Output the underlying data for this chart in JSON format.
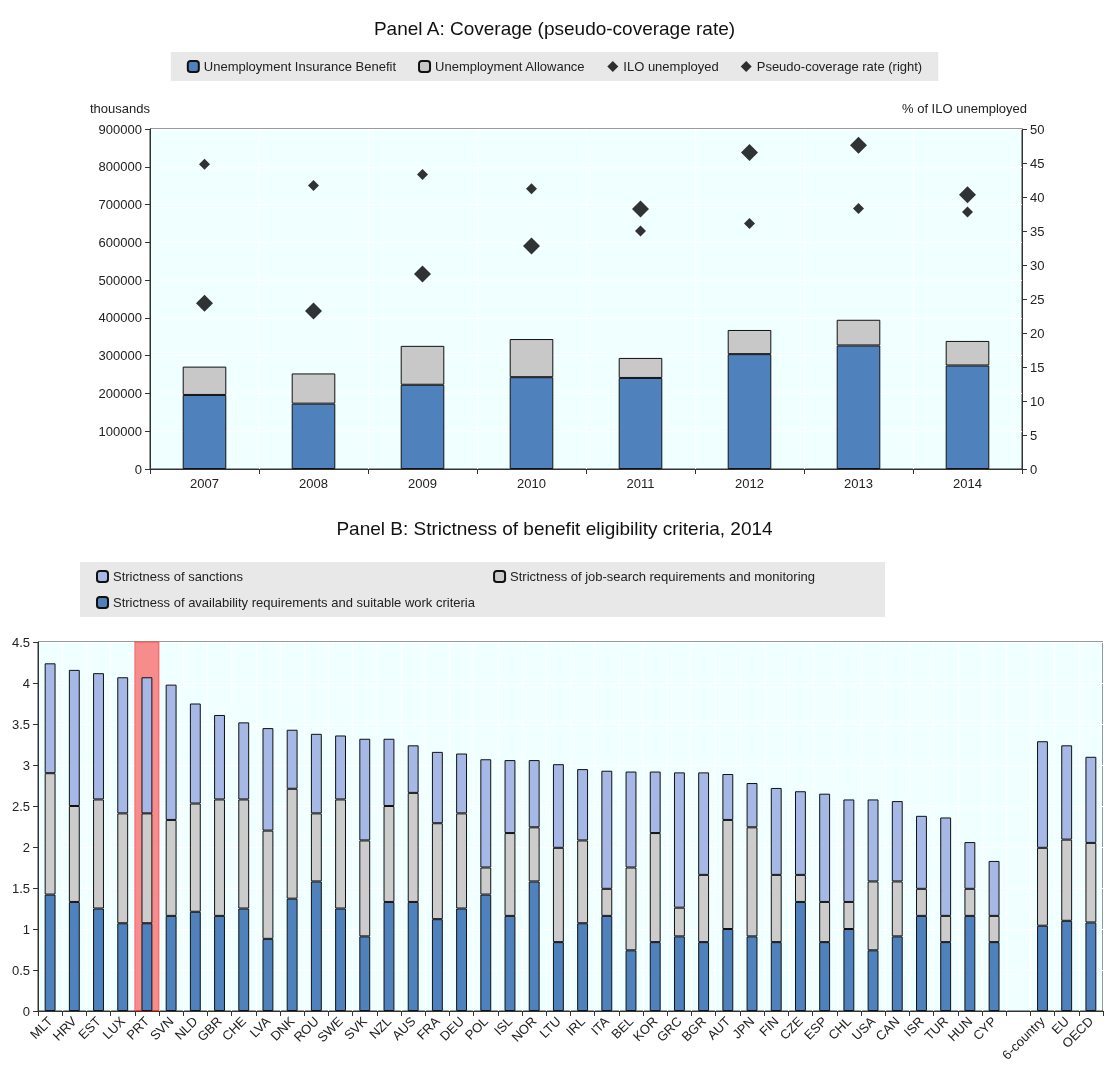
{
  "chart_data": [
    {
      "type": "bar",
      "title": "Panel A: Coverage (pseudo-coverage rate)",
      "categories": [
        "2007",
        "2008",
        "2009",
        "2010",
        "2011",
        "2012",
        "2013",
        "2014"
      ],
      "stacked": true,
      "ylabel": "thousands",
      "y2label": "% of ILO unemployed",
      "ylim": [
        0,
        900000
      ],
      "yticks": [
        0,
        100000,
        200000,
        300000,
        400000,
        500000,
        600000,
        700000,
        800000,
        900000
      ],
      "y2lim": [
        0,
        50
      ],
      "y2ticks": [
        0,
        5,
        10,
        15,
        20,
        25,
        30,
        35,
        40,
        45,
        50
      ],
      "legend": "top",
      "grid": true,
      "marker": "diamond",
      "series": [
        {
          "name": "Unemployment Insurance Benefit",
          "color": "#4f81bd",
          "values": [
            196000,
            173000,
            223000,
            243000,
            241000,
            304000,
            327000,
            274000
          ]
        },
        {
          "name": "Unemployment Allowance",
          "color": "#c8c8c8",
          "values": [
            75000,
            80000,
            103000,
            101000,
            53000,
            64000,
            68000,
            65000
          ]
        },
        {
          "name": "ILO unemployed",
          "type": "scatter",
          "color": "#000000",
          "values": [
            439000,
            418000,
            516000,
            590000,
            688000,
            838000,
            857000,
            726000
          ]
        },
        {
          "name": "Pseudo-coverage rate (right)",
          "type": "scatter",
          "axis": "y2",
          "color": "#000000",
          "values": [
            44.8,
            41.7,
            43.3,
            41.2,
            35.0,
            36.1,
            38.3,
            37.8
          ]
        }
      ]
    },
    {
      "type": "bar",
      "title": "Panel B: Strictness of benefit eligibility criteria, 2014",
      "categories": [
        "MLT",
        "HRV",
        "EST",
        "LUX",
        "PRT",
        "SVN",
        "NLD",
        "GBR",
        "CHE",
        "LVA",
        "DNK",
        "ROU",
        "SWE",
        "SVK",
        "NZL",
        "AUS",
        "FRA",
        "DEU",
        "POL",
        "ISL",
        "NOR",
        "LTU",
        "IRL",
        "ITA",
        "BEL",
        "KOR",
        "GRC",
        "BGR",
        "AUT",
        "JPN",
        "FIN",
        "CZE",
        "ESP",
        "CHL",
        "USA",
        "CAN",
        "ISR",
        "TUR",
        "HUN",
        "CYP",
        null,
        "6-country",
        "EU",
        "OECD"
      ],
      "stacked": true,
      "ylim": [
        0,
        4.5
      ],
      "yticks": [
        0,
        0.5,
        1,
        1.5,
        2,
        2.5,
        3,
        3.5,
        4,
        4.5
      ],
      "legend": "top",
      "grid": true,
      "bands": [
        {
          "axis": "x",
          "from": "PRT",
          "to": "PRT",
          "color": "#ff0000"
        }
      ],
      "series": [
        {
          "name": "Strictness of availability requirements and suitable work criteria",
          "color": "#4f81bd",
          "values": [
            1.42,
            1.33,
            1.25,
            1.07,
            1.07,
            1.16,
            1.21,
            1.16,
            1.25,
            0.88,
            1.37,
            1.58,
            1.25,
            0.91,
            1.33,
            1.33,
            1.12,
            1.25,
            1.42,
            1.16,
            1.58,
            0.84,
            1.07,
            1.16,
            0.74,
            0.84,
            0.91,
            0.84,
            1.0,
            0.91,
            0.84,
            1.33,
            0.84,
            1.0,
            0.74,
            0.91,
            1.16,
            0.84,
            1.16,
            0.84,
            null,
            1.04,
            1.1,
            1.08
          ]
        },
        {
          "name": "Strictness of job-search requirements and monitoring",
          "color": "#cccccc",
          "values": [
            1.48,
            1.17,
            1.33,
            1.34,
            1.34,
            1.17,
            1.32,
            1.42,
            1.33,
            1.32,
            1.34,
            0.83,
            1.33,
            1.17,
            1.17,
            1.33,
            1.17,
            1.16,
            0.33,
            1.01,
            0.66,
            1.15,
            1.01,
            0.33,
            1.01,
            1.33,
            0.35,
            0.82,
            1.33,
            1.33,
            0.82,
            0.33,
            0.49,
            0.33,
            0.84,
            0.67,
            0.33,
            0.32,
            0.33,
            0.32,
            null,
            0.95,
            0.99,
            0.97
          ]
        },
        {
          "name": "Strictness of sanctions",
          "color": "#a6b8e6",
          "values": [
            1.34,
            1.66,
            1.54,
            1.66,
            1.66,
            1.65,
            1.22,
            1.03,
            0.94,
            1.25,
            0.72,
            0.97,
            0.78,
            1.24,
            0.82,
            0.58,
            0.87,
            0.73,
            1.32,
            0.89,
            0.82,
            1.02,
            0.87,
            1.44,
            1.17,
            0.75,
            1.65,
            1.25,
            0.56,
            0.54,
            1.06,
            1.02,
            1.32,
            1.25,
            1.0,
            0.98,
            0.89,
            1.2,
            0.57,
            0.67,
            null,
            1.3,
            1.15,
            1.05
          ]
        }
      ]
    }
  ]
}
